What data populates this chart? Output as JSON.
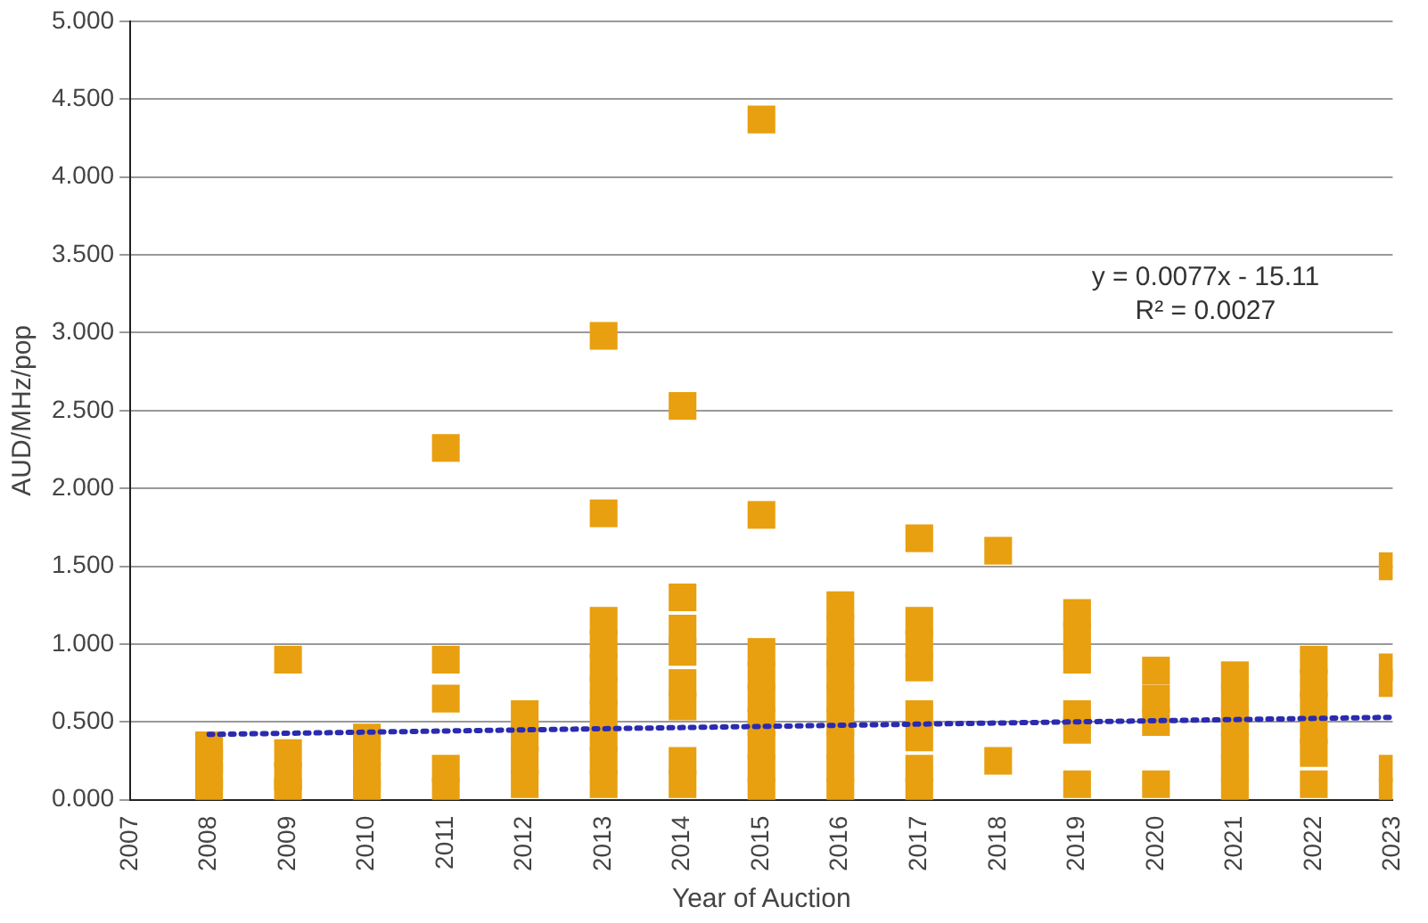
{
  "chart_data": {
    "type": "scatter",
    "xlabel": "Year of Auction",
    "ylabel": "AUD/MHz/pop",
    "xlim": [
      2007,
      2023
    ],
    "xticks": [
      2007,
      2008,
      2009,
      2010,
      2011,
      2012,
      2013,
      2014,
      2015,
      2016,
      2017,
      2018,
      2019,
      2020,
      2021,
      2022,
      2023
    ],
    "ylim": [
      0,
      5
    ],
    "yticks": [
      {
        "value": 0,
        "label": "0.000"
      },
      {
        "value": 0.5,
        "label": "0.500"
      },
      {
        "value": 1,
        "label": "1.000"
      },
      {
        "value": 1.5,
        "label": "1.500"
      },
      {
        "value": 2,
        "label": "2.000"
      },
      {
        "value": 2.5,
        "label": "2.500"
      },
      {
        "value": 3,
        "label": "3.000"
      },
      {
        "value": 3.5,
        "label": "3.500"
      },
      {
        "value": 4,
        "label": "4.000"
      },
      {
        "value": 4.5,
        "label": "4.500"
      },
      {
        "value": 5,
        "label": "5.000"
      }
    ],
    "grid": "y",
    "legend": false,
    "marker": "square",
    "annotations": [
      "y = 0.0077x - 15.11",
      "R² = 0.0027"
    ],
    "series": [
      {
        "color": "#e8a010",
        "x": [
          2008,
          2008,
          2008,
          2008,
          2009,
          2009,
          2009,
          2009,
          2010,
          2010,
          2010,
          2010,
          2011,
          2011,
          2011,
          2011,
          2011,
          2012,
          2012,
          2012,
          2012,
          2013,
          2013,
          2013,
          2013,
          2013,
          2013,
          2013,
          2013,
          2013,
          2013,
          2014,
          2014,
          2014,
          2014,
          2014,
          2014,
          2014,
          2014,
          2015,
          2015,
          2015,
          2015,
          2015,
          2015,
          2015,
          2015,
          2015,
          2016,
          2016,
          2016,
          2016,
          2016,
          2016,
          2016,
          2016,
          2016,
          2017,
          2017,
          2017,
          2017,
          2017,
          2017,
          2017,
          2017,
          2018,
          2018,
          2019,
          2019,
          2019,
          2019,
          2019,
          2019,
          2020,
          2020,
          2020,
          2020,
          2021,
          2021,
          2021,
          2021,
          2021,
          2021,
          2022,
          2022,
          2022,
          2022,
          2022,
          2022,
          2023,
          2023,
          2023,
          2023,
          2023
        ],
        "values": [
          0.05,
          0.15,
          0.25,
          0.35,
          0.9,
          0.3,
          0.15,
          0.05,
          0.4,
          0.3,
          0.15,
          0.05,
          2.26,
          0.9,
          0.65,
          0.2,
          0.05,
          0.55,
          0.4,
          0.25,
          0.1,
          2.98,
          1.84,
          1.15,
          1.0,
          0.85,
          0.7,
          0.55,
          0.4,
          0.25,
          0.1,
          2.53,
          1.3,
          1.1,
          0.95,
          0.75,
          0.6,
          0.25,
          0.1,
          4.37,
          1.83,
          0.95,
          0.8,
          0.65,
          0.5,
          0.35,
          0.2,
          0.05,
          1.25,
          1.1,
          0.95,
          0.8,
          0.65,
          0.5,
          0.35,
          0.2,
          0.05,
          1.68,
          1.15,
          1.0,
          0.85,
          0.55,
          0.4,
          0.2,
          0.05,
          1.6,
          0.25,
          1.2,
          1.05,
          0.9,
          0.55,
          0.45,
          0.1,
          0.83,
          0.65,
          0.5,
          0.1,
          0.8,
          0.65,
          0.5,
          0.35,
          0.2,
          0.05,
          0.9,
          0.75,
          0.6,
          0.45,
          0.3,
          0.1,
          1.5,
          0.85,
          0.75,
          0.2,
          0.05
        ]
      },
      {
        "type": "line",
        "color": "#2b2bb0",
        "line_style": "dotted",
        "marker": "none",
        "x": [
          2008,
          2023
        ],
        "values": [
          0.42,
          0.53
        ]
      }
    ]
  }
}
